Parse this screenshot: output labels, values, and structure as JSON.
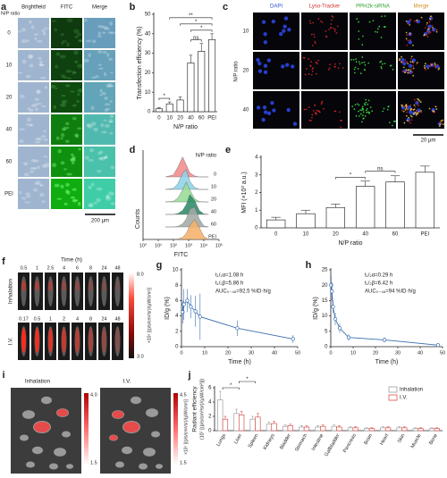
{
  "images": {
    "a": {
      "label": "a",
      "columns": [
        "Brightfield",
        "FITC",
        "Merge"
      ],
      "row_title": "N/P ratio",
      "rows": [
        "0",
        "10",
        "20",
        "40",
        "60",
        "PEI"
      ],
      "scale_bar": "200 μm"
    },
    "c": {
      "label": "c",
      "columns": [
        "DAPI",
        "Lyso-Tracker",
        "PPH2k-siRNA",
        "Merge"
      ],
      "row_title": "N/P ratio",
      "rows": [
        "10",
        "20",
        "40"
      ],
      "scale_bar": "20 μm"
    },
    "f": {
      "label": "f",
      "title": "Time (h)",
      "groups": [
        {
          "name": "Inhalation",
          "times": [
            "0.5",
            "1",
            "2.5",
            "4",
            "6",
            "8",
            "24",
            "48"
          ]
        },
        {
          "name": "I.V.",
          "times": [
            "0.17",
            "0.5",
            "1",
            "2",
            "4",
            "8",
            "24",
            "48"
          ]
        }
      ],
      "colorbar": {
        "max": "8.0",
        "min": "3.0",
        "unit": "×10⁶ [(p/s/cm²/sr)/(μW/cm²)]"
      }
    },
    "i": {
      "label": "i",
      "panels": [
        {
          "name": "Inhalation",
          "max": "4.0",
          "min": "1.5"
        },
        {
          "name": "I.V.",
          "max": "4.5",
          "min": "1.5"
        }
      ],
      "unit": "×10⁷ [(p/s/cm²/sr)/(μW/cm²)]"
    }
  },
  "chart_data": [
    {
      "type": "bar",
      "label": "b",
      "ylabel": "Transfection efficiency (%)",
      "xlabel": "N/P ratio",
      "categories": [
        "0",
        "10",
        "20",
        "40",
        "60",
        "PEI"
      ],
      "values": [
        1.5,
        4,
        6,
        25,
        31,
        37
      ],
      "errors": [
        0.6,
        1,
        1.5,
        4,
        4,
        3
      ],
      "color": "#ffffff",
      "edgecolor": "#333333",
      "ylim": [
        0,
        50
      ],
      "yticks": [
        0,
        10,
        20,
        30,
        40,
        50
      ],
      "annotations": [
        {
          "text": "*",
          "between": [
            0,
            1
          ]
        },
        {
          "text": "ns",
          "between": [
            3,
            4
          ]
        },
        {
          "text": "*",
          "between": [
            3,
            5
          ]
        },
        {
          "text": "*",
          "between": [
            2,
            5
          ]
        },
        {
          "text": "**",
          "between": [
            1,
            5
          ]
        }
      ]
    },
    {
      "type": "density",
      "label": "d",
      "ylabel": "Counts",
      "xlabel": "FITC",
      "legend_title": "N/P ratio",
      "xlog": true,
      "xlim": [
        1,
        100000
      ],
      "xticks": [
        {
          "value": 1,
          "label": "10⁰"
        },
        {
          "value": 10,
          "label": "10¹"
        },
        {
          "value": 100,
          "label": "10²"
        },
        {
          "value": 1000,
          "label": "10³"
        },
        {
          "value": 10000,
          "label": "10⁴"
        },
        {
          "value": 100000,
          "label": "10⁵"
        }
      ],
      "ylim": [
        0,
        1
      ],
      "x": [
        30,
        100,
        200,
        400,
        700,
        1200,
        2500,
        5000,
        10000,
        20000
      ],
      "series": [
        {
          "name": "0",
          "color": "#f28b8b",
          "values": [
            0,
            0.1,
            0.5,
            1,
            0.6,
            0.2,
            0.05,
            0,
            0,
            0
          ]
        },
        {
          "name": "10",
          "color": "#8fd3e8",
          "values": [
            0,
            0.05,
            0.3,
            0.8,
            1,
            0.4,
            0.1,
            0,
            0,
            0
          ]
        },
        {
          "name": "20",
          "color": "#98dc98",
          "values": [
            0,
            0.03,
            0.2,
            0.6,
            1,
            0.6,
            0.15,
            0.02,
            0,
            0
          ]
        },
        {
          "name": "40",
          "color": "#2e8b6a",
          "values": [
            0,
            0,
            0.05,
            0.2,
            0.5,
            1,
            0.7,
            0.2,
            0.03,
            0
          ]
        },
        {
          "name": "60",
          "color": "#a3aaa6",
          "values": [
            0,
            0,
            0.03,
            0.15,
            0.4,
            0.9,
            1,
            0.4,
            0.05,
            0
          ]
        },
        {
          "name": "PEI",
          "color": "#f5b26b",
          "values": [
            0,
            0,
            0.02,
            0.1,
            0.3,
            0.7,
            1,
            0.6,
            0.15,
            0
          ]
        }
      ]
    },
    {
      "type": "bar",
      "label": "e",
      "ylabel": "MFI (×10³ a.u.)",
      "xlabel": "N/P ratio",
      "categories": [
        "0",
        "10",
        "20",
        "40",
        "60",
        "PEI"
      ],
      "values": [
        0.45,
        0.8,
        1.15,
        2.35,
        2.6,
        3.15
      ],
      "errors": [
        0.15,
        0.2,
        0.2,
        0.3,
        0.35,
        0.35
      ],
      "color": "#ffffff",
      "edgecolor": "#333333",
      "ylim": [
        0,
        4
      ],
      "yticks": [
        0,
        1,
        2,
        3,
        4
      ],
      "annotations": [
        {
          "text": "*",
          "between": [
            2,
            3
          ]
        },
        {
          "text": "ns",
          "between": [
            3,
            4
          ]
        }
      ]
    },
    {
      "type": "line",
      "label": "g",
      "ylabel": "ID/g (%)",
      "xlabel": "Time (h)",
      "color": "#3a6fb0",
      "x": [
        0.5,
        1,
        2.5,
        4,
        6,
        8,
        24,
        48
      ],
      "values": [
        4.5,
        5.5,
        6,
        5.2,
        4.6,
        3.9,
        2.4,
        1.0
      ],
      "errors": [
        1.5,
        2,
        1.5,
        1.5,
        2,
        3,
        1,
        0.5
      ],
      "xlim": [
        0,
        50
      ],
      "xticks": [
        0,
        10,
        20,
        30,
        40,
        50
      ],
      "ylim": [
        0,
        10
      ],
      "yticks": [
        0,
        2,
        4,
        6,
        8,
        10
      ],
      "annotations": [
        "t₁/₂α=1.08 h",
        "t₁/₂β=5.86 h",
        "AUC₀₋₄₈=92.5 %ID·h/g"
      ]
    },
    {
      "type": "line",
      "label": "h",
      "ylabel": "ID/g (%)",
      "xlabel": "Time (h)",
      "color": "#3a6fb0",
      "x": [
        0.17,
        0.5,
        1,
        2,
        4,
        8,
        24,
        48
      ],
      "values": [
        20,
        18,
        13,
        9,
        6,
        3,
        2.2,
        0.5
      ],
      "errors": [
        3,
        3,
        2,
        2,
        1.5,
        1,
        0.8,
        0.3
      ],
      "xlim": [
        0,
        50
      ],
      "xticks": [
        0,
        10,
        20,
        30,
        40,
        50
      ],
      "ylim": [
        0,
        25
      ],
      "yticks": [
        0,
        5,
        10,
        15,
        20,
        25
      ],
      "annotations": [
        "t₁/₂α=0.29 h",
        "t₁/₂β=6.42 h",
        "AUC₀₋₄₈=94 %ID·h/g"
      ]
    },
    {
      "type": "bar",
      "label": "j",
      "ylabel": [
        "Radiant efficiency",
        "(10⁷ [(p/s/cm²/sr)/(μW/cm²)])"
      ],
      "legend": "upper right",
      "categories": [
        "Lungs",
        "Liver",
        "Spleen",
        "Kidneys",
        "Bladder",
        "Stomach",
        "Intestine",
        "Gallbladder",
        "Pancreas",
        "Brain",
        "Heart",
        "Skin",
        "Muscle",
        "Bone"
      ],
      "ylim": [
        0,
        6
      ],
      "yticks": [
        0,
        2,
        4,
        6
      ],
      "series": [
        {
          "name": "Inhalation",
          "color": "#ffffff",
          "edgecolor": "#9e9e9e",
          "values": [
            4.3,
            2.4,
            1.6,
            0.9,
            0.6,
            0.5,
            0.5,
            0.6,
            0.4,
            0.3,
            0.4,
            0.4,
            0.3,
            0.3
          ],
          "errors": [
            1.2,
            0.6,
            0.4,
            0.3,
            0.2,
            0.2,
            0.2,
            0.2,
            0.15,
            0.1,
            0.15,
            0.15,
            0.1,
            0.1
          ]
        },
        {
          "name": "I.V.",
          "color": "#ffffff",
          "edgecolor": "#d9534f",
          "values": [
            1.6,
            2.2,
            1.9,
            1.0,
            0.7,
            0.5,
            0.6,
            0.5,
            0.4,
            0.3,
            0.4,
            0.4,
            0.3,
            0.3
          ],
          "errors": [
            0.4,
            0.5,
            0.5,
            0.3,
            0.2,
            0.2,
            0.2,
            0.2,
            0.15,
            0.1,
            0.15,
            0.15,
            0.1,
            0.1
          ]
        }
      ],
      "annotations": [
        {
          "text": "*",
          "between": [
            0,
            1
          ]
        },
        {
          "text": "*",
          "between": [
            1,
            2
          ]
        }
      ]
    }
  ]
}
